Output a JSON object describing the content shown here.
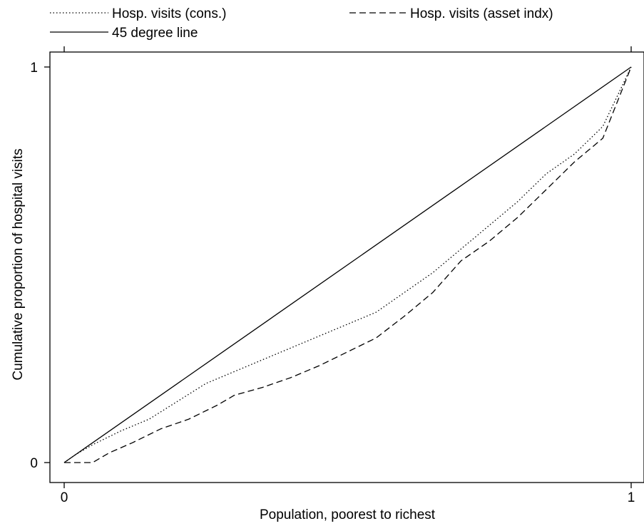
{
  "chart_data": {
    "type": "line",
    "title": "",
    "xlabel": "Population, poorest to richest",
    "ylabel": "Cumulative proportion of hospital visits",
    "xlim": [
      0,
      1
    ],
    "ylim": [
      0,
      1
    ],
    "x_ticks": [
      "0",
      "1"
    ],
    "y_ticks": [
      "0",
      "1"
    ],
    "grid": false,
    "legend_position": "top",
    "series": [
      {
        "name": "Hosp. visits (cons.)",
        "style": "dotted",
        "color": "#000000",
        "x": [
          0,
          0.02,
          0.05,
          0.1,
          0.15,
          0.2,
          0.25,
          0.3,
          0.35,
          0.4,
          0.45,
          0.5,
          0.55,
          0.6,
          0.65,
          0.7,
          0.75,
          0.8,
          0.85,
          0.9,
          0.95,
          1.0
        ],
        "y": [
          0,
          0.02,
          0.045,
          0.08,
          0.11,
          0.155,
          0.2,
          0.23,
          0.26,
          0.29,
          0.32,
          0.35,
          0.38,
          0.43,
          0.48,
          0.54,
          0.6,
          0.66,
          0.73,
          0.78,
          0.85,
          1.0
        ]
      },
      {
        "name": "Hosp. visits (asset indx)",
        "style": "dashed",
        "color": "#000000",
        "x": [
          0,
          0.05,
          0.08,
          0.12,
          0.17,
          0.22,
          0.27,
          0.3,
          0.35,
          0.4,
          0.45,
          0.5,
          0.55,
          0.6,
          0.65,
          0.7,
          0.75,
          0.8,
          0.85,
          0.9,
          0.95,
          1.0
        ],
        "y": [
          0,
          0.0,
          0.025,
          0.05,
          0.085,
          0.11,
          0.145,
          0.17,
          0.19,
          0.215,
          0.245,
          0.28,
          0.315,
          0.37,
          0.43,
          0.51,
          0.56,
          0.62,
          0.69,
          0.76,
          0.82,
          1.0
        ]
      },
      {
        "name": "45 degree line",
        "style": "solid",
        "color": "#000000",
        "x": [
          0,
          1
        ],
        "y": [
          0,
          1
        ]
      }
    ]
  }
}
